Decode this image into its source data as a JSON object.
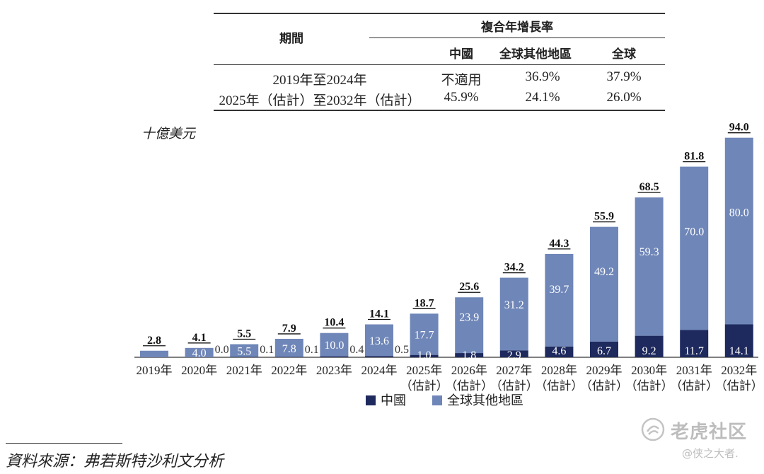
{
  "table": {
    "col_period": "期間",
    "col_group": "複合年增長率",
    "col_china": "中國",
    "col_rest": "全球其他地區",
    "col_global": "全球",
    "rows": [
      {
        "period": "2019年至2024年",
        "china": "不適用",
        "rest": "36.9%",
        "global": "37.9%"
      },
      {
        "period": "2025年（估計）至2032年（估計）",
        "china": "45.9%",
        "rest": "24.1%",
        "global": "26.0%"
      }
    ]
  },
  "unit_label": "十億美元",
  "colors": {
    "china": "#1e2a5e",
    "rest": "#6f86b8",
    "axis": "#333333"
  },
  "chart_data": {
    "type": "bar",
    "stacked": true,
    "categories": [
      "2019年",
      "2020年",
      "2021年",
      "2022年",
      "2023年",
      "2024年",
      "2025年",
      "2026年",
      "2027年",
      "2028年",
      "2029年",
      "2030年",
      "2031年",
      "2032年"
    ],
    "category_sublabels": [
      "",
      "",
      "",
      "",
      "",
      "",
      "（估計）",
      "（估計）",
      "（估計）",
      "（估計）",
      "（估計）",
      "（估計）",
      "（估計）",
      "（估計）"
    ],
    "series": [
      {
        "name": "中國",
        "values": [
          0.0,
          0.0,
          0.1,
          0.1,
          0.4,
          0.5,
          1.0,
          1.8,
          2.9,
          4.6,
          6.7,
          9.2,
          11.7,
          14.1
        ],
        "labels": [
          "",
          "0.0",
          "0.1",
          "0.1",
          "0.4",
          "0.5",
          "1.0",
          "1.8",
          "2.9",
          "4.6",
          "6.7",
          "9.2",
          "11.7",
          "14.1"
        ]
      },
      {
        "name": "全球其他地區",
        "values": [
          2.8,
          4.0,
          5.5,
          7.8,
          10.0,
          13.6,
          17.7,
          23.9,
          31.2,
          39.7,
          49.2,
          59.3,
          70.0,
          80.0
        ],
        "labels": [
          "",
          "4.0",
          "5.5",
          "7.8",
          "10.0",
          "13.6",
          "17.7",
          "23.9",
          "31.2",
          "39.7",
          "49.2",
          "59.3",
          "70.0",
          "80.0"
        ]
      }
    ],
    "totals": [
      "2.8",
      "4.1",
      "5.5",
      "7.9",
      "10.4",
      "14.1",
      "18.7",
      "25.6",
      "34.2",
      "44.3",
      "55.9",
      "68.5",
      "81.8",
      "94.0"
    ],
    "ylim": [
      0,
      94
    ],
    "ylabel": "十億美元",
    "legend": [
      "中國",
      "全球其他地區"
    ],
    "legend_position": "bottom"
  },
  "footnote": "資料來源：弗若斯特沙利文分析",
  "watermark": {
    "title": "老虎社区",
    "subtitle": "@侠之大者."
  }
}
